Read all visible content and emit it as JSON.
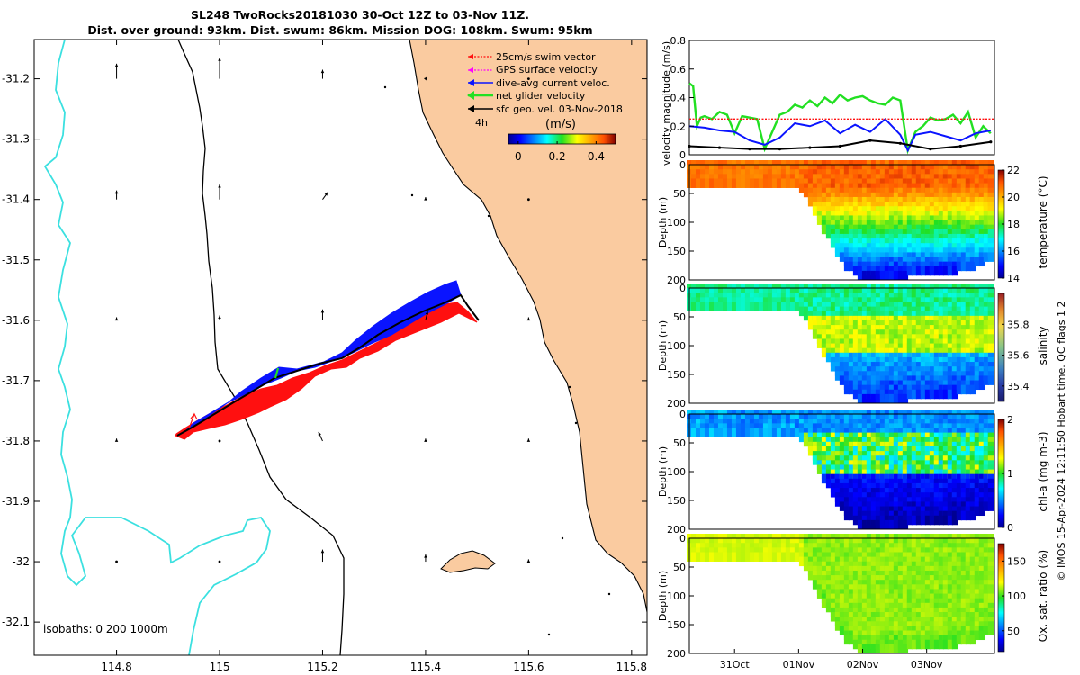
{
  "title_lines": [
    "SL248 TwoRocks20181030 30-Oct 12Z to 03-Nov 11Z.",
    "Dist. over ground: 93km. Dist. swum: 86km. Mission DOG: 108km. Swum: 95km"
  ],
  "credit": "© IMOS 15-Apr-2024 12:11:50 Hobart time. QC flags 1  2",
  "colors": {
    "land": "#FACBA0",
    "isobath_cyan": "#3BE0E0",
    "track_red": "#FF1010",
    "track_blue": "#0A14FF",
    "net_green": "#22E022",
    "swim_red": "#FF1010",
    "gps_magenta": "#FF00FF"
  },
  "chart_data": [
    {
      "type": "map",
      "name": "glider-track-map",
      "x_ticks": [
        114.8,
        115,
        115.2,
        115.4,
        115.6,
        115.8
      ],
      "x_tick_labels": [
        "114.8",
        "115",
        "115.2",
        "115.4",
        "115.6",
        "115.8"
      ],
      "y_ticks": [
        -31.2,
        -31.3,
        -31.4,
        -31.5,
        -31.6,
        -31.7,
        -31.8,
        -31.9,
        -32,
        -32.1
      ],
      "y_tick_labels": [
        "-31.2",
        "-31.3",
        "-31.4",
        "-31.5",
        "-31.6",
        "-31.7",
        "-31.8",
        "-31.9",
        "-32",
        "-32.1"
      ],
      "xlim": [
        114.64,
        115.83
      ],
      "ylim": [
        -32.155,
        -31.135
      ],
      "legend": [
        {
          "label": "25cm/s swim vector",
          "color": "#FF1010",
          "style": "dotted"
        },
        {
          "label": "GPS surface velocity",
          "color": "#FF00FF",
          "style": "dotted"
        },
        {
          "label": "dive-avg current veloc.",
          "color": "#0A14FF",
          "style": "solid"
        },
        {
          "label": "net glider velocity",
          "color": "#22E022",
          "style": "solid"
        },
        {
          "label": "sfc geo. vel. 03-Nov-2018",
          "color": "#000000",
          "style": "solid"
        }
      ],
      "time_step_label": "4h",
      "colorbar_title": "(m/s)",
      "colorbar_ticks": [
        0,
        0.2,
        0.4
      ],
      "colorbar_tick_labels": [
        "0",
        "0.2",
        "0.4"
      ],
      "colorbar_range": [
        -0.05,
        0.5
      ],
      "isobath_label": "isobaths: 0   200  1000m",
      "track": {
        "lon": [
          114.94,
          115.0,
          115.06,
          115.12,
          115.2,
          115.28,
          115.36,
          115.42,
          115.48,
          115.52
        ],
        "lat": [
          -31.8,
          -31.78,
          -31.75,
          -31.72,
          -31.69,
          -31.67,
          -31.635,
          -31.6,
          -31.575,
          -31.61
        ]
      },
      "geo_vectors": {
        "lon": [
          114.8,
          115.0,
          115.2,
          115.4,
          115.6
        ],
        "lat": [
          -31.2,
          -31.4,
          -31.6,
          -31.8,
          -32.0
        ],
        "dx": [
          [
            0.0,
            0.0,
            0.0,
            0.003,
            0.0
          ],
          [
            0.0,
            0.0,
            0.01,
            0.0,
            0.0
          ],
          [
            0.0,
            0.0,
            0.0,
            0.004,
            0.0
          ],
          [
            0.0,
            0.0,
            -0.008,
            0.0,
            0.0
          ],
          [
            0.0,
            0.0,
            0.0,
            0.0,
            0.0
          ]
        ],
        "dy": [
          [
            0.025,
            0.035,
            0.015,
            0.003,
            0.0
          ],
          [
            0.015,
            0.025,
            0.012,
            0.004,
            0.0
          ],
          [
            0.005,
            0.008,
            0.018,
            0.015,
            0.005
          ],
          [
            0.004,
            0.0,
            0.015,
            0.004,
            0.004
          ],
          [
            0.0,
            0.0,
            0.02,
            0.012,
            0.004
          ]
        ]
      }
    },
    {
      "type": "line",
      "name": "velocity-magnitude-panel",
      "ylabel": "velocity magnitude (m/s)",
      "ylim": [
        0,
        0.8
      ],
      "y_ticks": [
        0,
        0.2,
        0.4,
        0.6,
        0.8
      ],
      "y_tick_labels": [
        "0",
        "0.2",
        "0.4",
        "0.6",
        "0.8"
      ],
      "xlim": [
        0,
        4.05
      ],
      "series": [
        {
          "name": "net glider velocity",
          "color": "#22E022",
          "x": [
            0,
            0.05,
            0.1,
            0.15,
            0.2,
            0.3,
            0.4,
            0.5,
            0.6,
            0.7,
            0.8,
            0.9,
            1.0,
            1.2,
            1.3,
            1.4,
            1.5,
            1.6,
            1.7,
            1.8,
            1.9,
            2.0,
            2.1,
            2.2,
            2.3,
            2.4,
            2.5,
            2.6,
            2.7,
            2.8,
            2.9,
            3.0,
            3.1,
            3.2,
            3.3,
            3.4,
            3.5,
            3.6,
            3.7,
            3.8,
            3.9,
            4.0
          ],
          "values": [
            0.5,
            0.48,
            0.2,
            0.26,
            0.27,
            0.25,
            0.3,
            0.28,
            0.15,
            0.27,
            0.26,
            0.25,
            0.04,
            0.28,
            0.3,
            0.35,
            0.33,
            0.38,
            0.34,
            0.4,
            0.36,
            0.42,
            0.38,
            0.4,
            0.41,
            0.38,
            0.36,
            0.35,
            0.4,
            0.38,
            0.03,
            0.16,
            0.2,
            0.26,
            0.24,
            0.25,
            0.28,
            0.22,
            0.3,
            0.12,
            0.2,
            0.15
          ]
        },
        {
          "name": "dive-avg current",
          "color": "#0A14FF",
          "x": [
            0,
            0.2,
            0.4,
            0.6,
            0.8,
            1.0,
            1.2,
            1.4,
            1.6,
            1.8,
            2.0,
            2.2,
            2.4,
            2.6,
            2.8,
            2.9,
            3.0,
            3.2,
            3.4,
            3.6,
            3.8,
            4.0
          ],
          "values": [
            0.2,
            0.19,
            0.17,
            0.16,
            0.1,
            0.07,
            0.12,
            0.22,
            0.2,
            0.24,
            0.15,
            0.21,
            0.16,
            0.25,
            0.14,
            0.03,
            0.14,
            0.16,
            0.13,
            0.1,
            0.15,
            0.17
          ]
        },
        {
          "name": "sfc geo. vel.",
          "color": "#000000",
          "x": [
            0,
            0.4,
            0.8,
            1.2,
            1.6,
            2.0,
            2.4,
            2.8,
            3.2,
            3.6,
            4.0
          ],
          "values": [
            0.06,
            0.05,
            0.04,
            0.04,
            0.05,
            0.06,
            0.1,
            0.08,
            0.04,
            0.06,
            0.09
          ]
        },
        {
          "name": "swim speed",
          "color": "#FF1010",
          "x": [
            0,
            0.5,
            1.0,
            1.5,
            2.0,
            2.5,
            3.0,
            3.5,
            4.05
          ],
          "values": [
            0.25,
            0.25,
            0.25,
            0.25,
            0.25,
            0.25,
            0.25,
            0.25,
            0.25
          ]
        }
      ]
    },
    {
      "type": "heatmap",
      "name": "temperature-section",
      "ylabel": "Depth (m)",
      "colorbar_label": "temperature (°C)",
      "y_ticks": [
        0,
        50,
        100,
        150,
        200
      ],
      "y_tick_labels": [
        "0",
        "50",
        "100",
        "150",
        "200"
      ],
      "ylim": [
        200,
        0
      ],
      "colorbar_range": [
        14,
        22
      ],
      "colorbar_ticks": [
        14,
        16,
        18,
        20,
        22
      ],
      "colorbar_tick_labels": [
        "14",
        "16",
        "18",
        "20",
        "22"
      ],
      "bottom_depth": {
        "x": [
          0,
          0.3,
          0.6,
          0.9,
          1.2,
          1.4,
          1.55,
          1.7,
          1.9,
          2.1,
          2.3,
          2.6,
          2.9,
          3.2,
          3.5,
          3.8,
          4.05
        ],
        "values": [
          35,
          38,
          34,
          36,
          35,
          35,
          55,
          90,
          140,
          180,
          195,
          195,
          192,
          190,
          185,
          175,
          160
        ]
      },
      "surface": {
        "low": 20.5,
        "high": 21.5
      },
      "deep": 14.6,
      "mix_depth_shallow": 40,
      "mix_depth_deep": [
        60,
        130
      ]
    },
    {
      "type": "heatmap",
      "name": "salinity-section",
      "ylabel": "Depth (m)",
      "colorbar_label": "salinity",
      "y_ticks": [
        0,
        50,
        100,
        150,
        200
      ],
      "y_tick_labels": [
        "0",
        "50",
        "100",
        "150",
        "200"
      ],
      "ylim": [
        200,
        0
      ],
      "colorbar_range": [
        35.3,
        36.0
      ],
      "colorbar_ticks": [
        35.4,
        35.6,
        35.8
      ],
      "colorbar_tick_labels": [
        "35.4",
        "35.6",
        "35.8"
      ],
      "surface": {
        "low": 35.55,
        "high": 35.62
      },
      "mid": 35.72,
      "deep": 35.42
    },
    {
      "type": "heatmap",
      "name": "chlorophyll-section",
      "ylabel": "Depth (m)",
      "colorbar_label": "chl-a (mg m-3)",
      "y_ticks": [
        0,
        50,
        100,
        150,
        200
      ],
      "y_tick_labels": [
        "0",
        "50",
        "100",
        "150",
        "200"
      ],
      "ylim": [
        200,
        0
      ],
      "colorbar_range": [
        0,
        2
      ],
      "colorbar_ticks": [
        0,
        1,
        2
      ],
      "colorbar_tick_labels": [
        "0",
        "1",
        "2"
      ],
      "surface": 0.45,
      "dcm_depth": 80,
      "dcm_value": 1.1,
      "deep": 0.1
    },
    {
      "type": "heatmap",
      "name": "oxygen-saturation-section",
      "ylabel": "Depth (m)",
      "colorbar_label": "Ox. sat. ratio (%)",
      "y_ticks": [
        0,
        50,
        100,
        150,
        200
      ],
      "y_tick_labels": [
        "0",
        "50",
        "100",
        "150",
        "200"
      ],
      "ylim": [
        200,
        0
      ],
      "colorbar_range": [
        20,
        175
      ],
      "colorbar_ticks": [
        50,
        100,
        150
      ],
      "colorbar_tick_labels": [
        "50",
        "100",
        "150"
      ],
      "surface": 112,
      "deep": 104,
      "x_ticks": [
        0.6,
        1.45,
        2.3,
        3.15
      ],
      "x_tick_labels": [
        "31Oct",
        "01Nov",
        "02Nov",
        "03Nov"
      ]
    }
  ]
}
